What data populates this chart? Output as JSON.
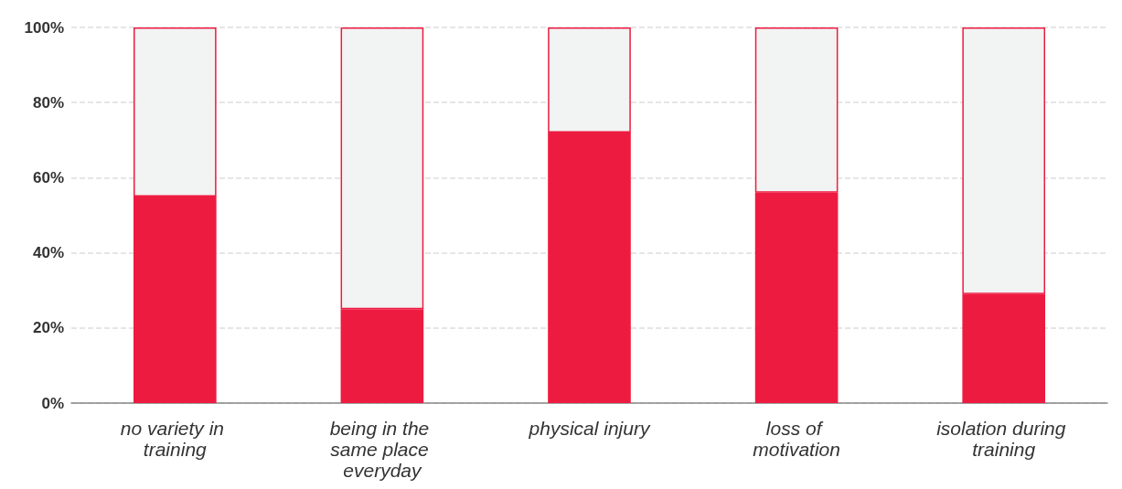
{
  "chart_data": {
    "type": "bar",
    "stacked": true,
    "categories": [
      "no variety in training",
      "being in the same place everyday",
      "physical injury",
      "loss of motivation",
      "isolation during training"
    ],
    "series": [
      {
        "color": "#ee1b40",
        "values": [
          55,
          25,
          72,
          56,
          29
        ]
      },
      {
        "color": "#f2f3f3",
        "values": [
          45,
          75,
          28,
          44,
          71
        ]
      }
    ],
    "ylim": [
      0,
      100
    ],
    "yticks": [
      {
        "value": 0,
        "label": "0%"
      },
      {
        "value": 20,
        "label": "20%"
      },
      {
        "value": 40,
        "label": "40%"
      },
      {
        "value": 60,
        "label": "60%"
      },
      {
        "value": 80,
        "label": "80%"
      },
      {
        "value": 100,
        "label": "100%"
      }
    ],
    "grid": "y"
  }
}
